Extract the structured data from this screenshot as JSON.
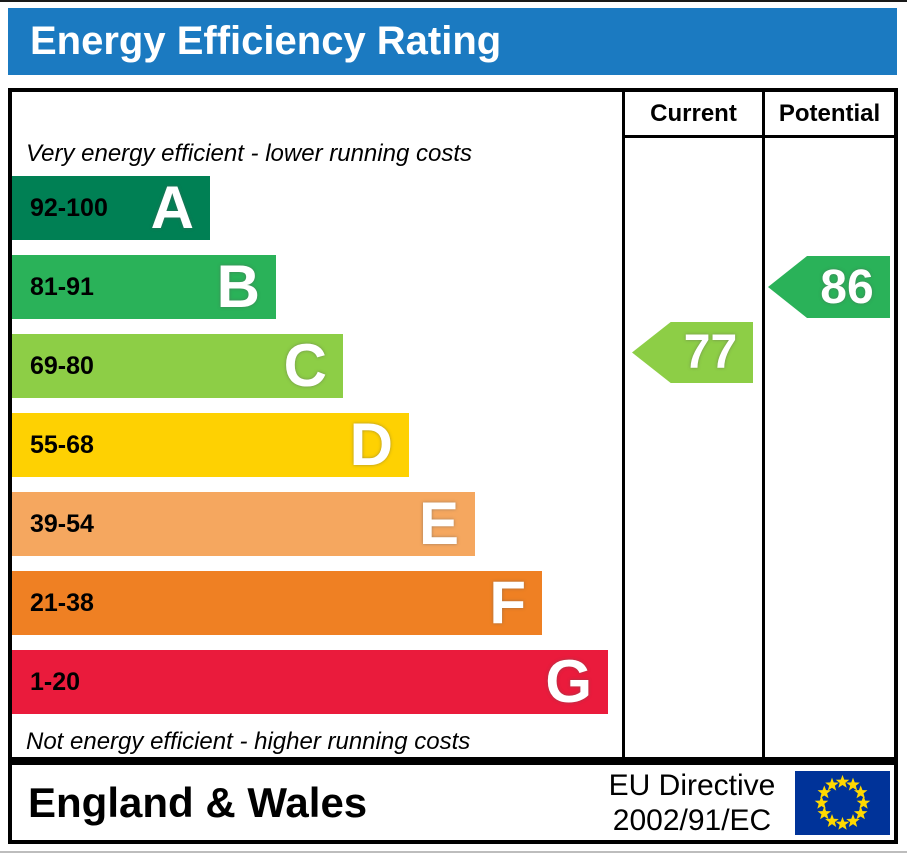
{
  "title": "Energy Efficiency Rating",
  "table": {
    "columns": [
      "Current",
      "Potential"
    ]
  },
  "captions": {
    "top": "Very energy efficient - lower running costs",
    "bottom": "Not energy efficient - higher running costs"
  },
  "bands": [
    {
      "letter": "A",
      "range": "92-100",
      "color": "#008054"
    },
    {
      "letter": "B",
      "range": "81-91",
      "color": "#2ab259"
    },
    {
      "letter": "C",
      "range": "69-80",
      "color": "#8dce46"
    },
    {
      "letter": "D",
      "range": "55-68",
      "color": "#fed102"
    },
    {
      "letter": "E",
      "range": "39-54",
      "color": "#f5a75f"
    },
    {
      "letter": "F",
      "range": "21-38",
      "color": "#ef8023"
    },
    {
      "letter": "G",
      "range": "1-20",
      "color": "#ea1b3c"
    }
  ],
  "ratings": {
    "current": {
      "value": "77",
      "band": "C",
      "color": "#8dce46"
    },
    "potential": {
      "value": "86",
      "band": "B",
      "color": "#2ab259"
    }
  },
  "footer": {
    "region": "England & Wales",
    "directive_line1": "EU Directive",
    "directive_line2": "2002/91/EC"
  },
  "colors": {
    "header_bar": "#1b7ac1",
    "eu_flag_blue": "#003399",
    "eu_flag_stars": "#ffd900"
  },
  "chart_data": {
    "type": "bar",
    "orientation": "horizontal",
    "title": "Energy Efficiency Rating",
    "categories": [
      "A",
      "B",
      "C",
      "D",
      "E",
      "F",
      "G"
    ],
    "band_ranges": [
      "92-100",
      "81-91",
      "69-80",
      "55-68",
      "39-54",
      "21-38",
      "1-20"
    ],
    "band_colors": [
      "#008054",
      "#2ab259",
      "#8dce46",
      "#fed102",
      "#f5a75f",
      "#ef8023",
      "#ea1b3c"
    ],
    "scale": [
      1,
      100
    ],
    "series": [
      {
        "name": "Current",
        "value": 77,
        "band": "C"
      },
      {
        "name": "Potential",
        "value": 86,
        "band": "B"
      }
    ],
    "top_note": "Very energy efficient - lower running costs",
    "bottom_note": "Not energy efficient - higher running costs",
    "region": "England & Wales",
    "directive": "EU Directive 2002/91/EC"
  }
}
